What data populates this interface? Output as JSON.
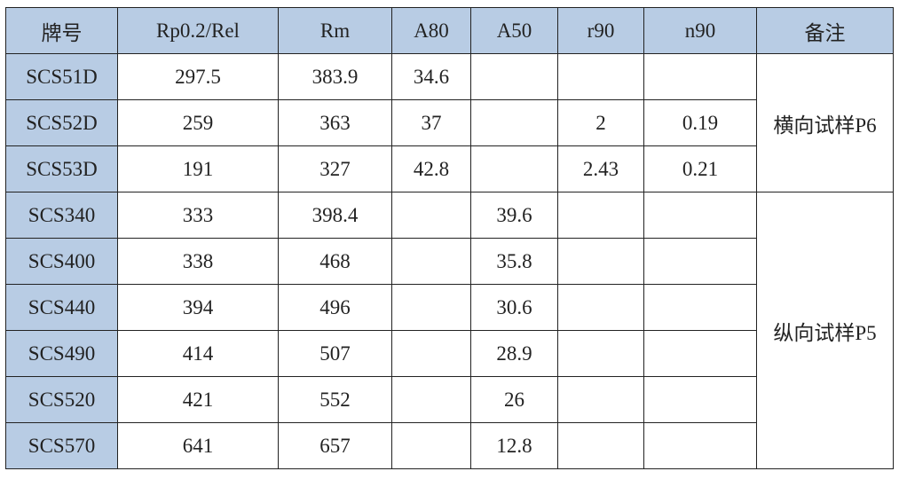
{
  "table": {
    "columns": [
      "牌号",
      "Rp0.2/Rel",
      "Rm",
      "A80",
      "A50",
      "r90",
      "n90",
      "备注"
    ],
    "groups": [
      {
        "remark": "横向试样P6",
        "rows": [
          [
            "SCS51D",
            297.5,
            383.9,
            34.6,
            null,
            null,
            null
          ],
          [
            "SCS52D",
            259,
            363,
            37,
            null,
            2,
            0.19
          ],
          [
            "SCS53D",
            191,
            327,
            42.8,
            null,
            2.43,
            0.21
          ]
        ]
      },
      {
        "remark": "纵向试样P5",
        "rows": [
          [
            "SCS340",
            333,
            398.4,
            null,
            39.6,
            null,
            null
          ],
          [
            "SCS400",
            338,
            468,
            null,
            35.8,
            null,
            null
          ],
          [
            "SCS440",
            394,
            496,
            null,
            30.6,
            null,
            null
          ],
          [
            "SCS490",
            414,
            507,
            null,
            28.9,
            null,
            null
          ],
          [
            "SCS520",
            421,
            552,
            null,
            26,
            null,
            null
          ],
          [
            "SCS570",
            641,
            657,
            null,
            12.8,
            null,
            null
          ]
        ]
      }
    ]
  }
}
